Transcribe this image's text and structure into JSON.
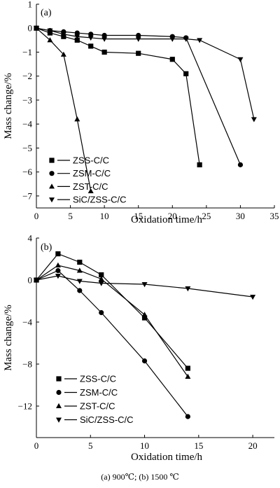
{
  "caption": "(a) 900℃; (b) 1500 ℃",
  "chart_data": [
    {
      "type": "line",
      "panel_label": "(a)",
      "xlabel": "Oxidation time/h",
      "ylabel": "Mass change/%",
      "xlim": [
        0,
        35
      ],
      "ylim": [
        -7.5,
        1
      ],
      "xticks": [
        0,
        5,
        10,
        15,
        20,
        25,
        30,
        35
      ],
      "yticks": [
        1,
        0,
        -1,
        -2,
        -3,
        -4,
        -5,
        -6,
        -7
      ],
      "legend_position": "bottom-left",
      "series": [
        {
          "name": "ZSS-C/C",
          "marker": "square",
          "x": [
            0,
            2,
            4,
            6,
            8,
            10,
            15,
            20,
            22,
            24
          ],
          "y": [
            0,
            -0.2,
            -0.35,
            -0.5,
            -0.75,
            -1.0,
            -1.05,
            -1.3,
            -1.9,
            -5.7
          ]
        },
        {
          "name": "ZSM-C/C",
          "marker": "circle",
          "x": [
            0,
            2,
            4,
            6,
            8,
            10,
            15,
            20,
            22,
            30
          ],
          "y": [
            0,
            -0.1,
            -0.15,
            -0.2,
            -0.25,
            -0.3,
            -0.3,
            -0.35,
            -0.4,
            -5.7
          ]
        },
        {
          "name": "ZST-C/C",
          "marker": "triangle-up",
          "x": [
            0,
            2,
            4,
            6,
            8
          ],
          "y": [
            0,
            -0.5,
            -1.1,
            -3.8,
            -6.8
          ]
        },
        {
          "name": "SiC/ZSS-C/C",
          "marker": "triangle-down",
          "x": [
            0,
            2,
            4,
            6,
            8,
            10,
            15,
            20,
            22,
            24,
            30,
            32
          ],
          "y": [
            0,
            -0.1,
            -0.25,
            -0.35,
            -0.4,
            -0.45,
            -0.45,
            -0.45,
            -0.45,
            -0.5,
            -1.3,
            -3.8
          ]
        }
      ]
    },
    {
      "type": "line",
      "panel_label": "(b)",
      "xlabel": "Oxidation time/h",
      "ylabel": "Mass change/%",
      "xlim": [
        0,
        22
      ],
      "ylim": [
        -15,
        4
      ],
      "xticks": [
        0,
        5,
        10,
        15,
        20
      ],
      "yticks": [
        4,
        0,
        -4,
        -8,
        -12
      ],
      "legend_position": "bottom-left",
      "series": [
        {
          "name": "ZSS-C/C",
          "marker": "square",
          "x": [
            0,
            2,
            4,
            6,
            10,
            14
          ],
          "y": [
            0,
            2.5,
            1.7,
            0.5,
            -3.6,
            -8.4
          ]
        },
        {
          "name": "ZSM-C/C",
          "marker": "circle",
          "x": [
            0,
            2,
            4,
            6,
            10,
            14
          ],
          "y": [
            0,
            0.9,
            -1.0,
            -3.1,
            -7.7,
            -13.0
          ]
        },
        {
          "name": "ZST-C/C",
          "marker": "triangle-up",
          "x": [
            0,
            2,
            4,
            6,
            10,
            14
          ],
          "y": [
            0,
            1.4,
            0.9,
            0.1,
            -3.3,
            -9.2
          ]
        },
        {
          "name": "SiC/ZSS-C/C",
          "marker": "triangle-down",
          "x": [
            0,
            2,
            4,
            6,
            10,
            14,
            20
          ],
          "y": [
            0,
            0.4,
            -0.1,
            -0.3,
            -0.4,
            -0.8,
            -1.6
          ]
        }
      ]
    }
  ]
}
